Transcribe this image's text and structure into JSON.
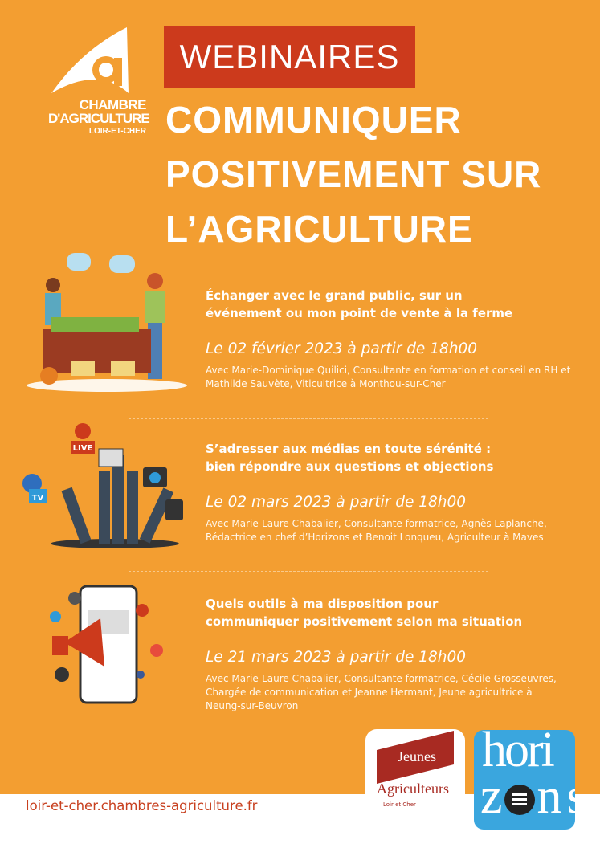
{
  "organizer": {
    "line1": "CHAMBRE",
    "line2": "D'AGRICULTURE",
    "line3": "LOIR-ET-CHER"
  },
  "badge": "WEBINAIRES",
  "title": [
    "COMMUNIQUER",
    "POSITIVEMENT SUR",
    "L’AGRICULTURE"
  ],
  "sessions": [
    {
      "heading": "Échanger avec le grand public, sur un événement ou mon point de vente à la ferme",
      "date": "Le 02 février 2023 à partir de 18h00",
      "speakers": "Avec Marie-Dominique Quilici, Consultante en formation et conseil en RH et Mathilde Sauvète, Viticultrice à Monthou-sur-Cher"
    },
    {
      "heading": "S’adresser aux médias en toute sérénité : bien répondre aux questions et objections",
      "date": "Le 02 mars 2023 à partir de 18h00",
      "speakers": "Avec Marie-Laure Chabalier, Consultante formatrice, Agnès Laplanche, Rédactrice en chef d’Horizons et Benoit Lonqueu, Agriculteur à Maves"
    },
    {
      "heading": "Quels outils à ma disposition pour communiquer positivement selon ma situation",
      "date": "Le 21 mars 2023 à partir de 18h00",
      "speakers": "Avec Marie-Laure Chabalier, Consultante formatrice, Cécile Grosseuvres, Chargée de communication et Jeanne Hermant, Jeune agricultrice à Neung-sur-Beuvron"
    }
  ],
  "illustration_labels": {
    "live": "LIVE",
    "tv": "TV"
  },
  "partners": {
    "ja": {
      "line1": "Jeunes",
      "line2": "Agriculteurs",
      "line3": "Loir et Cher"
    },
    "horizons": {
      "line1": "hori",
      "line2": "zons"
    }
  },
  "footer_url": "loir-et-cher.chambres-agriculture.fr",
  "colors": {
    "background": "#f39e31",
    "badge": "#cc3a1c",
    "horizons": "#3aa6de"
  }
}
